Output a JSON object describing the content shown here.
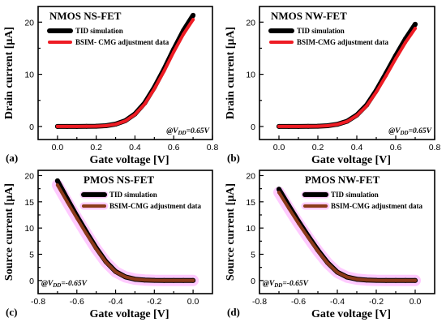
{
  "chart_data": [
    {
      "type": "line",
      "panel_label": "(a)",
      "title": "NMOS NS-FET",
      "xlabel": "Gate voltage [V]",
      "ylabel": "Drain current [μA]",
      "xlim": [
        -0.1,
        0.8
      ],
      "ylim": [
        -2.5,
        23
      ],
      "xticks": [
        0.0,
        0.2,
        0.4,
        0.6,
        0.8
      ],
      "xtick_labels": [
        "0.0",
        "0.2",
        "0.4",
        "0.6",
        "0.8"
      ],
      "yticks": [
        0,
        10,
        20
      ],
      "ytick_labels": [
        "0",
        "10",
        "20"
      ],
      "annotation": "@VDD=0.65V",
      "annotation_parts": {
        "prefix": "@V",
        "sub": "DD",
        "suffix": "=0.65V"
      },
      "legend_position": "top-left",
      "x": [
        0.0,
        0.05,
        0.1,
        0.15,
        0.2,
        0.25,
        0.3,
        0.35,
        0.4,
        0.45,
        0.5,
        0.55,
        0.6,
        0.65,
        0.7
      ],
      "series": [
        {
          "name": "TID simulation",
          "color": "#000000",
          "line_width": 6,
          "values": [
            0.0,
            0.0,
            0.01,
            0.02,
            0.05,
            0.15,
            0.45,
            1.1,
            2.4,
            4.5,
            7.5,
            11.0,
            14.8,
            18.4,
            21.3
          ]
        },
        {
          "name": "BSIM- CMG adjustment data",
          "color": "#ee1c24",
          "line_width": 4,
          "values": [
            0.0,
            0.0,
            0.01,
            0.02,
            0.05,
            0.14,
            0.42,
            1.05,
            2.3,
            4.3,
            7.2,
            10.6,
            14.3,
            17.7,
            20.5
          ]
        }
      ]
    },
    {
      "type": "line",
      "panel_label": "(b)",
      "title": "NMOS NW-FET",
      "xlabel": "Gate voltage [V]",
      "ylabel": "Drain current [μA]",
      "xlim": [
        -0.1,
        0.8
      ],
      "ylim": [
        -2.5,
        23
      ],
      "xticks": [
        0.0,
        0.2,
        0.4,
        0.6,
        0.8
      ],
      "xtick_labels": [
        "0.0",
        "0.2",
        "0.4",
        "0.6",
        "0.8"
      ],
      "yticks": [
        0,
        10,
        20
      ],
      "ytick_labels": [
        "0",
        "10",
        "20"
      ],
      "annotation": "@VDD=0.65V",
      "annotation_parts": {
        "prefix": "@V",
        "sub": "DD",
        "suffix": "=0.65V"
      },
      "legend_position": "top-left",
      "x": [
        0.0,
        0.05,
        0.1,
        0.15,
        0.2,
        0.25,
        0.3,
        0.35,
        0.4,
        0.45,
        0.5,
        0.55,
        0.6,
        0.65,
        0.7
      ],
      "series": [
        {
          "name": "TID simulation",
          "color": "#000000",
          "line_width": 6,
          "values": [
            0.0,
            0.0,
            0.01,
            0.02,
            0.05,
            0.15,
            0.42,
            1.0,
            2.2,
            4.1,
            6.9,
            10.2,
            13.6,
            16.8,
            19.6
          ]
        },
        {
          "name": "BSIM-CMG adjustment data",
          "color": "#ee1c24",
          "line_width": 4,
          "values": [
            0.0,
            0.0,
            0.01,
            0.02,
            0.05,
            0.14,
            0.4,
            0.95,
            2.1,
            3.9,
            6.6,
            9.7,
            13.0,
            16.1,
            18.8
          ]
        }
      ]
    },
    {
      "type": "line",
      "panel_label": "(c)",
      "title": "PMOS NS-FET",
      "xlabel": "Gate voltage [V]",
      "ylabel": "Source current [μA]",
      "xlim": [
        -0.8,
        0.1
      ],
      "ylim": [
        -2.5,
        21
      ],
      "xticks": [
        -0.8,
        -0.6,
        -0.4,
        -0.2,
        0.0
      ],
      "xtick_labels": [
        "-0.8",
        "-0.6",
        "-0.4",
        "-0.2",
        "0.0"
      ],
      "yticks": [
        0,
        5,
        10,
        15,
        20
      ],
      "ytick_labels": [
        "0",
        "5",
        "10",
        "15",
        "20"
      ],
      "annotation": "@VDD=-0.65V",
      "annotation_parts": {
        "prefix": "@V",
        "sub": "DD",
        "suffix": "=-0.65V"
      },
      "legend_position": "top-right",
      "x": [
        -0.7,
        -0.65,
        -0.6,
        -0.55,
        -0.5,
        -0.45,
        -0.4,
        -0.35,
        -0.3,
        -0.25,
        -0.2,
        -0.15,
        -0.1,
        -0.05,
        0.0
      ],
      "series": [
        {
          "name": "TID simulation",
          "color": "#000000",
          "line_width": 6,
          "values": [
            19.0,
            15.6,
            12.3,
            9.2,
            6.2,
            3.6,
            1.7,
            0.7,
            0.25,
            0.1,
            0.04,
            0.02,
            0.01,
            0.0,
            0.0
          ]
        },
        {
          "name": "BSIM-CMG adjustment data",
          "color": "#8b3a1a",
          "line_width": 4,
          "values": [
            18.2,
            15.0,
            11.9,
            8.9,
            6.0,
            3.5,
            1.65,
            0.7,
            0.25,
            0.1,
            0.04,
            0.02,
            0.01,
            0.0,
            0.0
          ]
        }
      ]
    },
    {
      "type": "line",
      "panel_label": "(d)",
      "title": "PMOS NW-FET",
      "xlabel": "Gate voltage [V]",
      "ylabel": "Source current [μA]",
      "xlim": [
        -0.8,
        0.1
      ],
      "ylim": [
        -2.5,
        21
      ],
      "xticks": [
        -0.8,
        -0.6,
        -0.4,
        -0.2,
        0.0
      ],
      "xtick_labels": [
        "-0.8",
        "-0.6",
        "-0.4",
        "-0.2",
        "0.0"
      ],
      "yticks": [
        0,
        5,
        10,
        15,
        20
      ],
      "ytick_labels": [
        "0",
        "5",
        "10",
        "15",
        "20"
      ],
      "annotation": "@VDD=-0.65V",
      "annotation_parts": {
        "prefix": "@V",
        "sub": "DD",
        "suffix": "=-0.65V"
      },
      "legend_position": "top-right",
      "x": [
        -0.7,
        -0.65,
        -0.6,
        -0.55,
        -0.5,
        -0.45,
        -0.4,
        -0.35,
        -0.3,
        -0.25,
        -0.2,
        -0.15,
        -0.1,
        -0.05,
        0.0
      ],
      "series": [
        {
          "name": "TID simulation",
          "color": "#000000",
          "line_width": 6,
          "values": [
            17.4,
            14.3,
            11.3,
            8.5,
            5.8,
            3.4,
            1.6,
            0.65,
            0.25,
            0.1,
            0.04,
            0.02,
            0.01,
            0.0,
            0.0
          ]
        },
        {
          "name": "BSIM-CMG adjustment data",
          "color": "#8b3a1a",
          "line_width": 4,
          "values": [
            16.8,
            13.8,
            10.9,
            8.2,
            5.6,
            3.3,
            1.55,
            0.65,
            0.25,
            0.1,
            0.04,
            0.02,
            0.01,
            0.0,
            0.0
          ]
        }
      ]
    }
  ],
  "colors": {
    "pmos_glow": "#ff66ff"
  }
}
